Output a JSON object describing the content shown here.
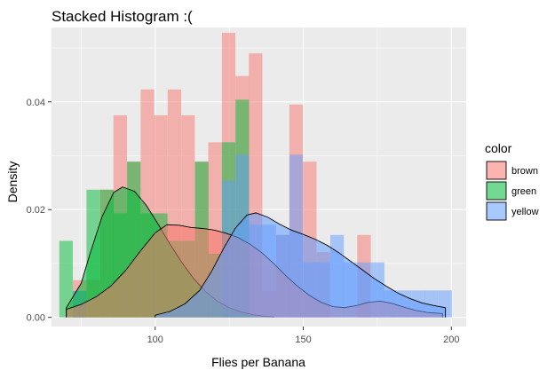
{
  "chart_data": {
    "type": "bar",
    "title": "Stacked Histogram :(",
    "xlabel": "Flies per Banana",
    "ylabel": "Density",
    "xlim": [
      65,
      205
    ],
    "ylim": [
      -0.0017,
      0.0538
    ],
    "x_ticks": [
      100,
      150,
      200
    ],
    "y_ticks": [
      0.0,
      0.02,
      0.04
    ],
    "y_tick_labels": [
      "0.00",
      "0.02",
      "0.04"
    ],
    "grid": true,
    "legend_title": "color",
    "legend_position": "right",
    "bin_width": 4.57,
    "series": [
      {
        "name": "brown",
        "color": "#F8766D",
        "bins": [
          {
            "x": 74.5,
            "density": 0.0069
          },
          {
            "x": 79.1,
            "density": 0.0069
          },
          {
            "x": 83.7,
            "density": 0.0237
          },
          {
            "x": 88.2,
            "density": 0.0375
          },
          {
            "x": 92.8,
            "density": 0.0289
          },
          {
            "x": 97.4,
            "density": 0.0423
          },
          {
            "x": 101.9,
            "density": 0.0375
          },
          {
            "x": 106.5,
            "density": 0.0423
          },
          {
            "x": 111.1,
            "density": 0.0375
          },
          {
            "x": 115.7,
            "density": 0.0289
          },
          {
            "x": 120.2,
            "density": 0.0325
          },
          {
            "x": 124.8,
            "density": 0.0528
          },
          {
            "x": 129.4,
            "density": 0.0448
          },
          {
            "x": 133.9,
            "density": 0.049
          },
          {
            "x": 138.5,
            "density": 0.0049
          },
          {
            "x": 143.1,
            "density": 0.0153
          },
          {
            "x": 147.6,
            "density": 0.0395
          },
          {
            "x": 152.2,
            "density": 0.0289
          },
          {
            "x": 156.8,
            "density": 0.0121
          },
          {
            "x": 170.5,
            "density": 0.0153
          }
        ]
      },
      {
        "name": "green",
        "color": "#00BA38",
        "bins": [
          {
            "x": 69.9,
            "density": 0.0142
          },
          {
            "x": 74.5,
            "density": 0.0049
          },
          {
            "x": 79.1,
            "density": 0.0237
          },
          {
            "x": 83.7,
            "density": 0.0237
          },
          {
            "x": 88.2,
            "density": 0.0193
          },
          {
            "x": 92.8,
            "density": 0.0289
          },
          {
            "x": 97.4,
            "density": 0.0193
          },
          {
            "x": 101.9,
            "density": 0.0193
          },
          {
            "x": 106.5,
            "density": 0.0142
          },
          {
            "x": 111.1,
            "density": 0.0142
          },
          {
            "x": 115.7,
            "density": 0.0289
          },
          {
            "x": 120.2,
            "density": 0.0118
          },
          {
            "x": 124.8,
            "density": 0.0325
          },
          {
            "x": 129.4,
            "density": 0.0404
          }
        ]
      },
      {
        "name": "yellow",
        "color": "#619CFF",
        "bins": [
          {
            "x": 74.5,
            "density": 0.0049
          },
          {
            "x": 124.8,
            "density": 0.0254
          },
          {
            "x": 129.4,
            "density": 0.0302
          },
          {
            "x": 133.9,
            "density": 0.0172
          },
          {
            "x": 138.5,
            "density": 0.0172
          },
          {
            "x": 143.1,
            "density": 0.0153
          },
          {
            "x": 147.6,
            "density": 0.0302
          },
          {
            "x": 152.2,
            "density": 0.0102
          },
          {
            "x": 156.8,
            "density": 0.0102
          },
          {
            "x": 161.4,
            "density": 0.0153
          },
          {
            "x": 165.9,
            "density": 0.0102
          },
          {
            "x": 170.5,
            "density": 0.0102
          },
          {
            "x": 175.1,
            "density": 0.0102
          },
          {
            "x": 179.6,
            "density": 0.005
          },
          {
            "x": 184.2,
            "density": 0.005
          },
          {
            "x": 188.8,
            "density": 0.005
          },
          {
            "x": 193.3,
            "density": 0.005
          },
          {
            "x": 197.9,
            "density": 0.005
          }
        ]
      }
    ],
    "density_curves": [
      {
        "name": "green",
        "color": "#00BA38",
        "points": [
          [
            70,
            0.0018
          ],
          [
            75,
            0.0063
          ],
          [
            78,
            0.0118
          ],
          [
            82,
            0.0186
          ],
          [
            86,
            0.0232
          ],
          [
            89,
            0.0242
          ],
          [
            93,
            0.0234
          ],
          [
            97,
            0.0208
          ],
          [
            101,
            0.0173
          ],
          [
            105,
            0.0136
          ],
          [
            109,
            0.0102
          ],
          [
            113,
            0.0072
          ],
          [
            117,
            0.0048
          ],
          [
            121,
            0.003
          ],
          [
            125,
            0.0018
          ],
          [
            129,
            0.001
          ],
          [
            133,
            0.0005
          ],
          [
            137,
            0.0002
          ],
          [
            140,
            0.0001
          ]
        ]
      },
      {
        "name": "brown",
        "color": "#F8766D",
        "points": [
          [
            70,
            0.0015
          ],
          [
            75,
            0.0024
          ],
          [
            80,
            0.0038
          ],
          [
            85,
            0.0058
          ],
          [
            90,
            0.0087
          ],
          [
            95,
            0.0123
          ],
          [
            100,
            0.0157
          ],
          [
            104,
            0.0172
          ],
          [
            108,
            0.0171
          ],
          [
            112,
            0.0167
          ],
          [
            116,
            0.0165
          ],
          [
            120,
            0.0162
          ],
          [
            124,
            0.0156
          ],
          [
            128,
            0.0148
          ],
          [
            132,
            0.0136
          ],
          [
            136,
            0.012
          ],
          [
            140,
            0.01
          ],
          [
            144,
            0.0078
          ],
          [
            148,
            0.0058
          ],
          [
            152,
            0.0041
          ],
          [
            156,
            0.0028
          ],
          [
            160,
            0.002
          ],
          [
            164,
            0.0018
          ],
          [
            168,
            0.0022
          ],
          [
            172,
            0.0028
          ],
          [
            176,
            0.003
          ],
          [
            180,
            0.0026
          ],
          [
            184,
            0.0019
          ],
          [
            188,
            0.0013
          ],
          [
            192,
            0.0009
          ],
          [
            197,
            0.0007
          ]
        ]
      },
      {
        "name": "yellow",
        "color": "#619CFF",
        "points": [
          [
            100,
            0.0004
          ],
          [
            105,
            0.0011
          ],
          [
            110,
            0.0025
          ],
          [
            115,
            0.005
          ],
          [
            119,
            0.0085
          ],
          [
            123,
            0.0127
          ],
          [
            127,
            0.0165
          ],
          [
            131,
            0.019
          ],
          [
            134,
            0.0194
          ],
          [
            138,
            0.0186
          ],
          [
            142,
            0.0173
          ],
          [
            146,
            0.0162
          ],
          [
            150,
            0.0154
          ],
          [
            154,
            0.0145
          ],
          [
            158,
            0.0134
          ],
          [
            162,
            0.012
          ],
          [
            166,
            0.0104
          ],
          [
            170,
            0.0088
          ],
          [
            174,
            0.0072
          ],
          [
            178,
            0.0058
          ],
          [
            182,
            0.0045
          ],
          [
            186,
            0.0035
          ],
          [
            190,
            0.0027
          ],
          [
            194,
            0.0022
          ],
          [
            198,
            0.0018
          ]
        ]
      }
    ]
  }
}
